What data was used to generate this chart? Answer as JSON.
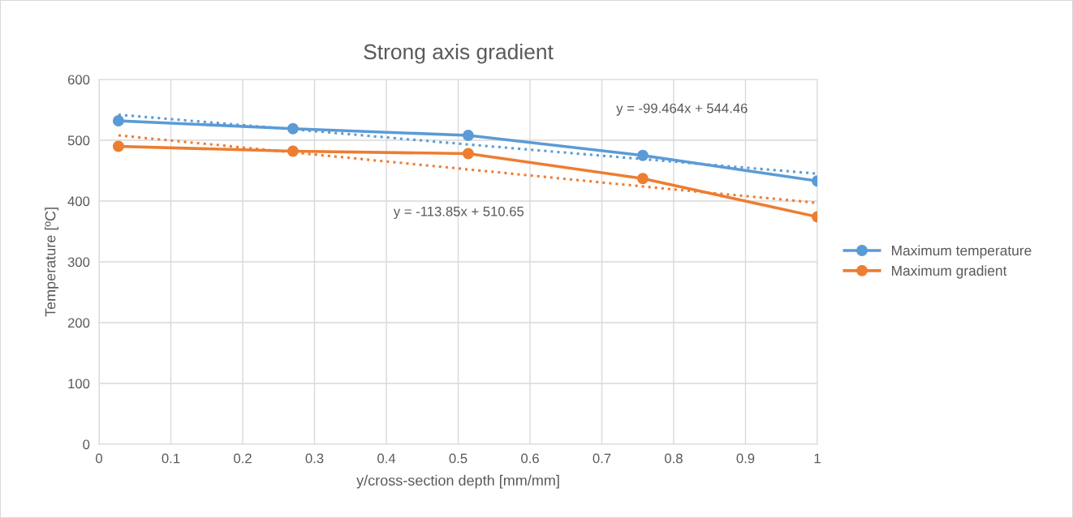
{
  "chart_data": {
    "type": "line",
    "title": "Strong axis gradient",
    "xlabel": "y/cross-section depth [mm/mm]",
    "ylabel": "Temperature [ºC]",
    "x": [
      0.027,
      0.27,
      0.514,
      0.757,
      1.0
    ],
    "series": [
      {
        "name": "Maximum temperature",
        "color": "#5b9bd5",
        "values": [
          532,
          519,
          508,
          475,
          433
        ],
        "marker": "circle",
        "line_style": "solid"
      },
      {
        "name": "Maximum gradient",
        "color": "#ed7d31",
        "values": [
          490,
          482,
          478,
          437,
          374
        ],
        "marker": "circle",
        "line_style": "solid"
      },
      {
        "color": "#5b9bd5",
        "values": [
          542,
          518,
          493,
          469,
          445
        ],
        "marker": "none",
        "line_style": "dotted"
      },
      {
        "color": "#ed7d31",
        "values": [
          508,
          480,
          452,
          424,
          397
        ],
        "marker": "none",
        "line_style": "dotted"
      }
    ],
    "xlim": [
      0,
      1
    ],
    "xticks": [
      0,
      0.1,
      0.2,
      0.3,
      0.4,
      0.5,
      0.6,
      0.7,
      0.8,
      0.9,
      1
    ],
    "ylim": [
      0,
      600
    ],
    "yticks": [
      0,
      100,
      200,
      300,
      400,
      500,
      600
    ],
    "grid": true,
    "legend": "right",
    "annotations": [
      "y = -99.464x + 544.46",
      "y = -113.85x + 510.65"
    ]
  }
}
